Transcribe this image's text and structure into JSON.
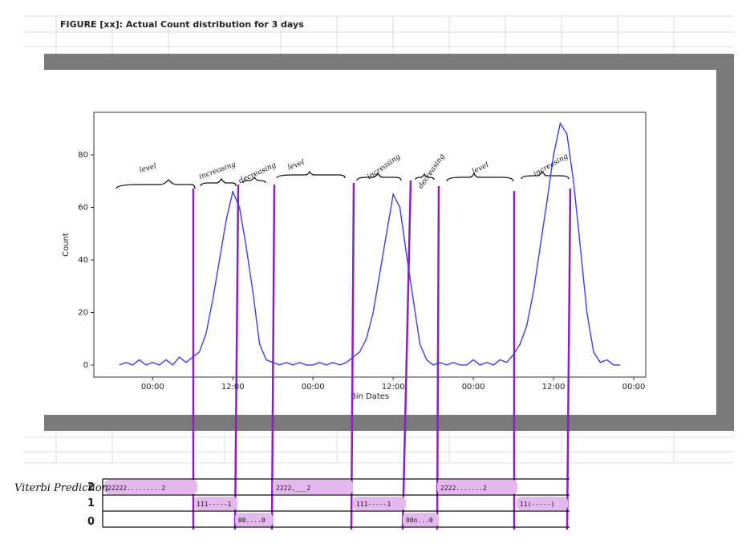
{
  "chart_data": {
    "type": "line",
    "title": "FIGURE [xx]: Actual Count distribution for 3 days",
    "x_label": "Bin Dates",
    "y_label": "Count",
    "x": [
      -5,
      -4,
      -3,
      -2,
      -1,
      0,
      1,
      2,
      3,
      4,
      5,
      6,
      7,
      8,
      9,
      10,
      11,
      12,
      13,
      14,
      15,
      16,
      17,
      18,
      19,
      20,
      21,
      22,
      23,
      24,
      25,
      26,
      27,
      28,
      29,
      30,
      31,
      32,
      33,
      34,
      35,
      36,
      37,
      38,
      39,
      40,
      41,
      42,
      43,
      44,
      45,
      46,
      47,
      48,
      49,
      50,
      51,
      52,
      53,
      54,
      55,
      56,
      57,
      58,
      59,
      60,
      61,
      62,
      63,
      64,
      65,
      66,
      67,
      68,
      69,
      70
    ],
    "values": [
      0,
      1,
      0,
      2,
      0,
      1,
      0,
      2,
      0,
      3,
      1,
      3,
      5,
      12,
      25,
      40,
      55,
      66,
      60,
      45,
      28,
      8,
      2,
      1,
      0,
      1,
      0,
      1,
      0,
      0,
      1,
      0,
      1,
      0,
      1,
      3,
      5,
      10,
      20,
      35,
      50,
      65,
      60,
      42,
      25,
      8,
      2,
      0,
      1,
      0,
      1,
      0,
      0,
      2,
      0,
      1,
      0,
      2,
      1,
      4,
      8,
      15,
      28,
      45,
      62,
      80,
      92,
      88,
      70,
      45,
      20,
      5,
      1,
      2,
      0,
      0
    ],
    "color": "#3b3bff",
    "xlim": [
      -8.8,
      73.8
    ],
    "xticks": [
      {
        "value": 0,
        "label": "00:00"
      },
      {
        "value": 12,
        "label": "12:00"
      },
      {
        "value": 24,
        "label": "00:00"
      },
      {
        "value": 36,
        "label": "12:00"
      },
      {
        "value": 48,
        "label": "00:00"
      },
      {
        "value": 60,
        "label": "12:00"
      },
      {
        "value": 72,
        "label": "00:00"
      }
    ],
    "ylim": [
      -4.6,
      96.2
    ],
    "yticks": [
      0,
      20,
      40,
      60,
      80
    ],
    "grid": false,
    "annotations": [
      "level",
      "increasing",
      "decreasing",
      "level",
      "increasing",
      "decreasing",
      "level",
      "increasing"
    ]
  },
  "viterbi": {
    "label": "Viterbi Prediction",
    "states": [
      "2",
      "1",
      "0"
    ],
    "rows": [
      [
        "22222.........2",
        "2222,___2",
        "2222.......2"
      ],
      [
        "111-----1",
        "111-----1",
        "11(-----)"
      ],
      [
        "00....0",
        "00o...0"
      ]
    ]
  }
}
